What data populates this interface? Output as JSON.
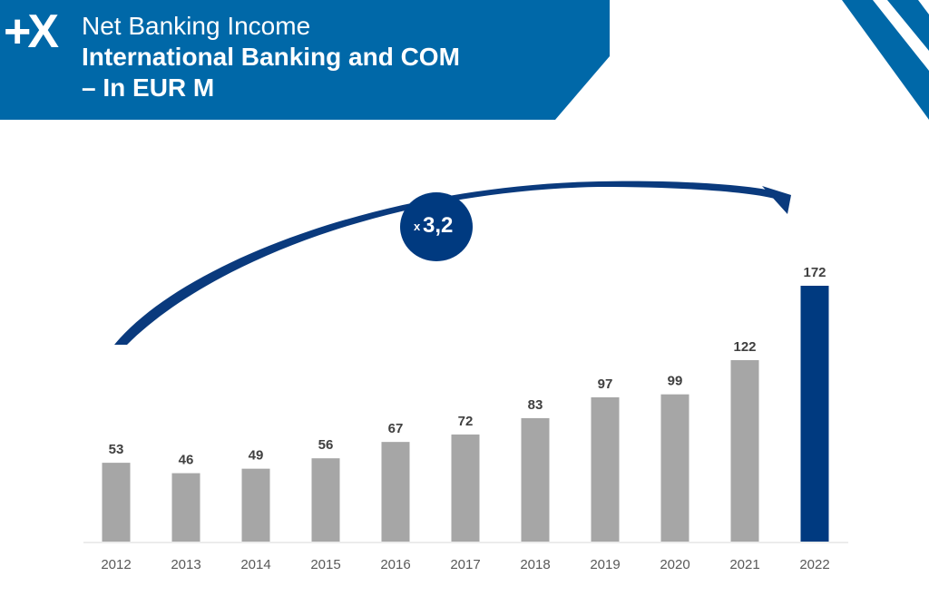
{
  "header": {
    "logo_text": "+X",
    "title_line1": "Net Banking Income",
    "title_line2": "International Banking and COM",
    "title_line3": "– In EUR M"
  },
  "colors": {
    "banner_blue": "#0068a8",
    "bar_grey": "#a6a6a6",
    "highlight_navy": "#003a80",
    "arrow_navy": "#0a3a7d"
  },
  "annotation": {
    "prefix": "x",
    "multiplier": "3,2"
  },
  "chart_data": {
    "type": "bar",
    "categories": [
      "2012",
      "2013",
      "2014",
      "2015",
      "2016",
      "2017",
      "2018",
      "2019",
      "2020",
      "2021",
      "2022"
    ],
    "values": [
      53,
      46,
      49,
      56,
      67,
      72,
      83,
      97,
      99,
      122,
      172
    ],
    "data_labels": [
      "53",
      "46",
      "49",
      "56",
      "67",
      "72",
      "83",
      "97",
      "99",
      "122",
      "172"
    ],
    "highlight_index": 10,
    "ylim": [
      0,
      172
    ],
    "grid": false,
    "legend": "none",
    "title": "",
    "xlabel": "",
    "ylabel": ""
  }
}
